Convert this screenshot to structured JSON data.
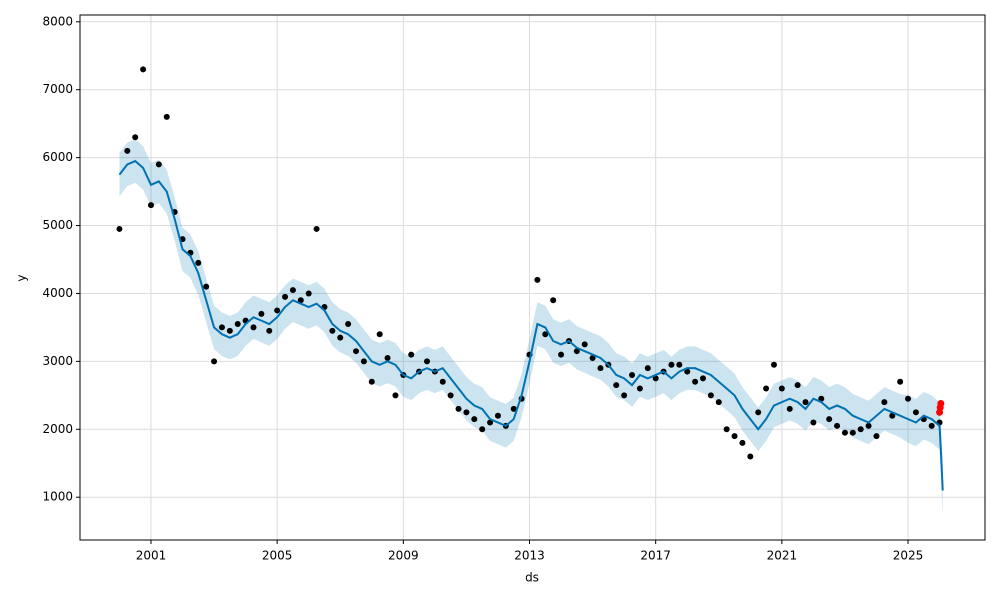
{
  "chart_data": {
    "type": "line",
    "x_label": "ds",
    "y_label": "y",
    "xlim": [
      1998.75,
      2027.44
    ],
    "ylim": [
      370,
      8100
    ],
    "xticks": [
      2001,
      2005,
      2009,
      2013,
      2017,
      2021,
      2025
    ],
    "yticks": [
      1000,
      2000,
      3000,
      4000,
      5000,
      6000,
      7000,
      8000
    ],
    "grid": true,
    "point_color": "#000000",
    "line_color": "#0072b2",
    "band_color": "#0072b2",
    "recent_color": "#ff0000",
    "x": [
      2000,
      2000.25,
      2000.5,
      2000.75,
      2001,
      2001.25,
      2001.5,
      2001.75,
      2002,
      2002.25,
      2002.5,
      2002.75,
      2003,
      2003.25,
      2003.5,
      2003.75,
      2004,
      2004.25,
      2004.5,
      2004.75,
      2005,
      2005.25,
      2005.5,
      2005.75,
      2006,
      2006.25,
      2006.5,
      2006.75,
      2007,
      2007.25,
      2007.5,
      2007.75,
      2008,
      2008.25,
      2008.5,
      2008.75,
      2009,
      2009.25,
      2009.5,
      2009.75,
      2010,
      2010.25,
      2010.5,
      2010.75,
      2011,
      2011.25,
      2011.5,
      2011.75,
      2012,
      2012.25,
      2012.5,
      2012.75,
      2013,
      2013.25,
      2013.5,
      2013.75,
      2014,
      2014.25,
      2014.5,
      2014.75,
      2015,
      2015.25,
      2015.5,
      2015.75,
      2016,
      2016.25,
      2016.5,
      2016.75,
      2017,
      2017.25,
      2017.5,
      2017.75,
      2018,
      2018.25,
      2018.5,
      2018.75,
      2019,
      2019.25,
      2019.5,
      2019.75,
      2020,
      2020.25,
      2020.5,
      2020.75,
      2021,
      2021.25,
      2021.5,
      2021.75,
      2022,
      2022.25,
      2022.5,
      2022.75,
      2023,
      2023.25,
      2023.5,
      2023.75,
      2024,
      2024.25,
      2024.5,
      2024.75,
      2025,
      2025.25,
      2025.5,
      2025.75,
      2026,
      2026.05,
      2026.1
    ],
    "observed": [
      4950,
      6100,
      6300,
      7300,
      5300,
      5900,
      6600,
      5200,
      4800,
      4600,
      4450,
      4100,
      3000,
      3500,
      3450,
      3550,
      3600,
      3500,
      3700,
      3450,
      3750,
      3950,
      4050,
      3900,
      4000,
      4950,
      3800,
      3450,
      3350,
      3550,
      3150,
      3000,
      2700,
      3400,
      3050,
      2500,
      2800,
      3100,
      2850,
      3000,
      2850,
      2700,
      2500,
      2300,
      2250,
      2150,
      2000,
      2100,
      2200,
      2050,
      2300,
      2450,
      3100,
      4200,
      3400,
      3900,
      3100,
      3300,
      3150,
      3250,
      3050,
      2900,
      2950,
      2650,
      2500,
      2800,
      2600,
      2900,
      2750,
      2850,
      2950,
      2950,
      2850,
      2700,
      2750,
      2500,
      2400,
      2000,
      1900,
      1800,
      1600,
      2250,
      2600,
      2950,
      2600,
      2300,
      2650,
      2400,
      2100,
      2450,
      2150,
      2050,
      1950,
      1950,
      2000,
      2050,
      1900,
      2400,
      2200,
      2700,
      2450,
      2250,
      2150,
      2050,
      2100,
      null,
      null
    ],
    "forecast": [
      5750,
      5900,
      5950,
      5850,
      5600,
      5650,
      5500,
      5100,
      4650,
      4550,
      4300,
      3900,
      3500,
      3400,
      3350,
      3400,
      3550,
      3650,
      3600,
      3550,
      3650,
      3800,
      3900,
      3850,
      3800,
      3850,
      3750,
      3550,
      3450,
      3400,
      3300,
      3150,
      3000,
      2950,
      3000,
      2950,
      2800,
      2750,
      2850,
      2900,
      2850,
      2900,
      2750,
      2600,
      2450,
      2350,
      2300,
      2150,
      2100,
      2050,
      2150,
      2500,
      3000,
      3550,
      3500,
      3300,
      3250,
      3300,
      3200,
      3150,
      3100,
      3050,
      2950,
      2800,
      2750,
      2650,
      2800,
      2750,
      2800,
      2850,
      2750,
      2850,
      2900,
      2900,
      2850,
      2800,
      2700,
      2600,
      2500,
      2300,
      2150,
      2000,
      2150,
      2350,
      2400,
      2450,
      2400,
      2300,
      2450,
      2400,
      2300,
      2350,
      2300,
      2200,
      2150,
      2100,
      2200,
      2300,
      2250,
      2200,
      2150,
      2100,
      2200,
      2150,
      2050,
      1600,
      1100
    ],
    "uncertainty": [
      320,
      320,
      320,
      320,
      320,
      320,
      320,
      320,
      320,
      320,
      320,
      320,
      320,
      320,
      320,
      320,
      320,
      320,
      320,
      320,
      320,
      320,
      320,
      320,
      320,
      320,
      320,
      320,
      320,
      320,
      320,
      320,
      320,
      320,
      320,
      320,
      320,
      320,
      320,
      320,
      320,
      320,
      320,
      320,
      320,
      320,
      320,
      320,
      320,
      320,
      320,
      320,
      320,
      320,
      320,
      320,
      320,
      320,
      320,
      320,
      320,
      320,
      320,
      320,
      320,
      320,
      320,
      320,
      320,
      320,
      320,
      320,
      320,
      320,
      320,
      320,
      320,
      320,
      320,
      320,
      320,
      320,
      320,
      320,
      320,
      320,
      320,
      320,
      320,
      320,
      320,
      320,
      320,
      320,
      320,
      320,
      320,
      320,
      320,
      320,
      350,
      350,
      350,
      350,
      350,
      380,
      400
    ],
    "recent": {
      "x": [
        2026,
        2026.02,
        2026.04
      ],
      "values": [
        2250,
        2320,
        2380
      ]
    }
  }
}
